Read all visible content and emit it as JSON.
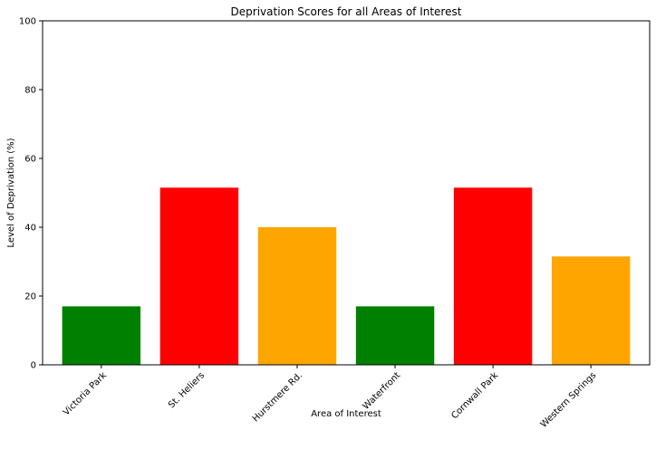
{
  "chart_data": {
    "type": "bar",
    "title": "Deprivation Scores for all Areas of Interest",
    "xlabel": "Area of Interest",
    "ylabel": "Level of Deprivation (%)",
    "ylim": [
      0,
      100
    ],
    "yticks": [
      0,
      20,
      40,
      60,
      80,
      100
    ],
    "grid": false,
    "categories": [
      "Victoria Park",
      "St. Heliers",
      "Hurstmere Rd.",
      "Waterfront",
      "Cornwall Park",
      "Western Springs"
    ],
    "values": [
      17,
      51.5,
      40,
      17,
      51.5,
      31.5
    ],
    "colors": [
      "#008000",
      "#ff0000",
      "#ffa500",
      "#008000",
      "#ff0000",
      "#ffa500"
    ]
  }
}
